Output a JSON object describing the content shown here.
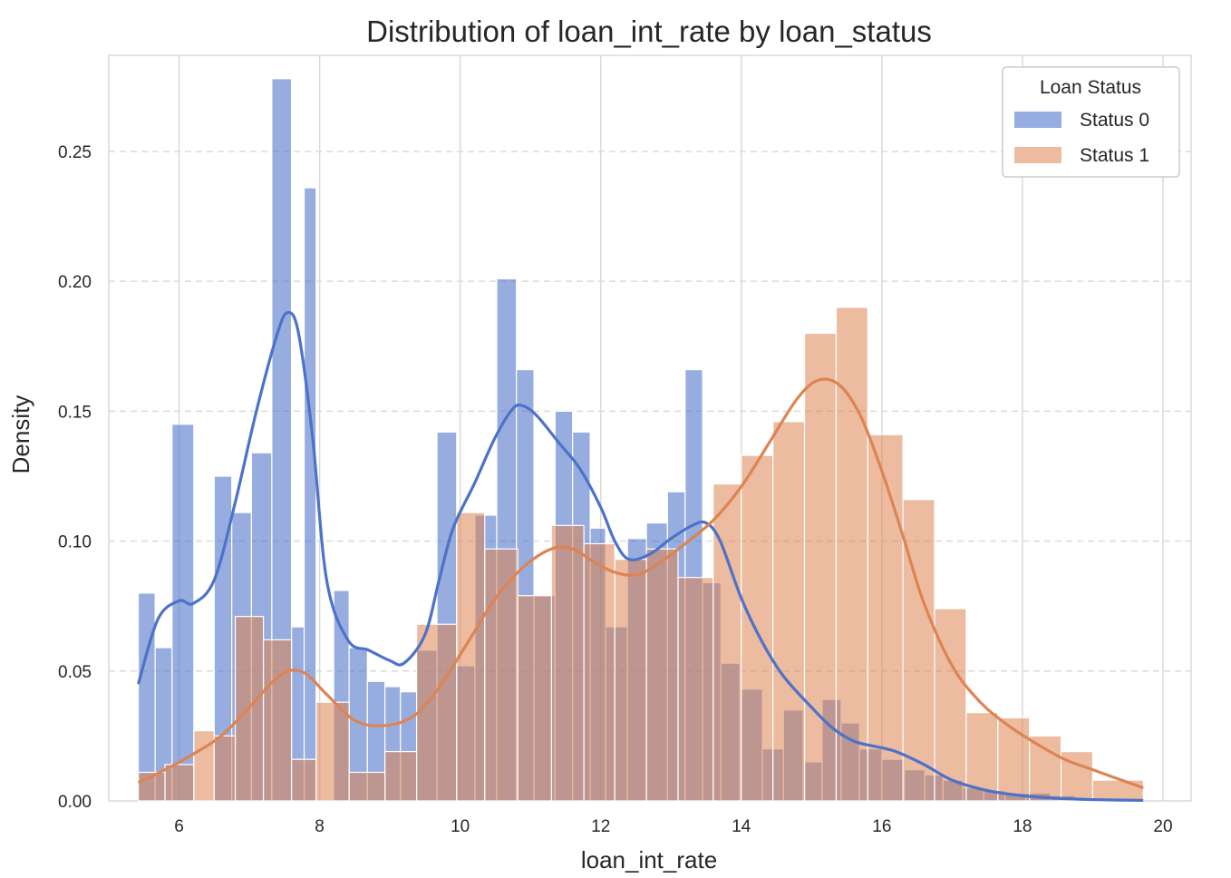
{
  "chart_data": {
    "type": "histogram",
    "title": "Distribution of loan_int_rate by loan_status",
    "xlabel": "loan_int_rate",
    "ylabel": "Density",
    "xlim": [
      5.0,
      20.4
    ],
    "ylim": [
      0,
      0.287
    ],
    "xticks": [
      6,
      8,
      10,
      12,
      14,
      16,
      18,
      20
    ],
    "xtick_labels": [
      "6",
      "8",
      "10",
      "12",
      "14",
      "16",
      "18",
      "20"
    ],
    "yticks": [
      0,
      0.05,
      0.1,
      0.15,
      0.2,
      0.25
    ],
    "ytick_labels": [
      "0.00",
      "0.05",
      "0.10",
      "0.15",
      "0.20",
      "0.25"
    ],
    "grid": true,
    "legend": {
      "title": "Loan Status",
      "placement": "top-right"
    },
    "series": [
      {
        "name": "Status 0",
        "color": "#4c72c9",
        "bin_edges": [
          5.42,
          5.66,
          5.9,
          6.21,
          6.5,
          6.75,
          7.03,
          7.32,
          7.6,
          7.78,
          7.95,
          8.2,
          8.42,
          8.68,
          8.93,
          9.15,
          9.38,
          9.67,
          9.95,
          10.21,
          10.52,
          10.8,
          11.05,
          11.35,
          11.6,
          11.85,
          12.07,
          12.38,
          12.65,
          12.95,
          13.2,
          13.45,
          13.71,
          13.98,
          14.3,
          14.6,
          14.88,
          15.15,
          15.42,
          15.68,
          16.0,
          16.32,
          16.61,
          16.87,
          17.15,
          17.45,
          17.75,
          18.05,
          18.4,
          18.75,
          19.1,
          19.72
        ],
        "densities": [
          0.08,
          0.059,
          0.145,
          0.0,
          0.125,
          0.111,
          0.134,
          0.278,
          0.067,
          0.236,
          0.0,
          0.081,
          0.059,
          0.046,
          0.044,
          0.042,
          0.058,
          0.142,
          0.052,
          0.11,
          0.201,
          0.166,
          0.079,
          0.15,
          0.142,
          0.105,
          0.067,
          0.101,
          0.107,
          0.119,
          0.166,
          0.084,
          0.053,
          0.043,
          0.02,
          0.035,
          0.015,
          0.039,
          0.03,
          0.02,
          0.016,
          0.012,
          0.01,
          0.008,
          0.005,
          0.004,
          0.003,
          0.003,
          0.002,
          0.001,
          0.001
        ],
        "kde_x": [
          5.42,
          5.7,
          6.0,
          6.2,
          6.5,
          6.8,
          7.1,
          7.4,
          7.55,
          7.7,
          7.9,
          8.1,
          8.4,
          8.7,
          9.0,
          9.2,
          9.5,
          9.7,
          9.9,
          10.2,
          10.5,
          10.75,
          10.9,
          11.1,
          11.4,
          11.7,
          12.0,
          12.2,
          12.4,
          12.7,
          13.0,
          13.3,
          13.5,
          13.7,
          14.0,
          14.3,
          14.6,
          15.0,
          15.3,
          15.6,
          15.9,
          16.2,
          16.6,
          17.0,
          17.5,
          18.0,
          18.5,
          19.0,
          19.72
        ],
        "kde_y": [
          0.045,
          0.07,
          0.077,
          0.076,
          0.085,
          0.115,
          0.15,
          0.18,
          0.188,
          0.18,
          0.14,
          0.085,
          0.062,
          0.058,
          0.054,
          0.053,
          0.064,
          0.085,
          0.105,
          0.122,
          0.14,
          0.151,
          0.152,
          0.148,
          0.138,
          0.128,
          0.113,
          0.1,
          0.093,
          0.095,
          0.101,
          0.106,
          0.107,
          0.1,
          0.078,
          0.061,
          0.048,
          0.036,
          0.028,
          0.023,
          0.021,
          0.019,
          0.014,
          0.008,
          0.004,
          0.002,
          0.001,
          0.0005,
          0.0002
        ]
      },
      {
        "name": "Status 1",
        "color": "#dd8452",
        "bin_edges": [
          5.42,
          5.8,
          6.21,
          6.5,
          6.8,
          7.2,
          7.6,
          7.95,
          8.42,
          8.93,
          9.38,
          9.95,
          10.35,
          10.82,
          11.3,
          11.76,
          12.2,
          12.65,
          13.1,
          13.6,
          14.0,
          14.45,
          14.9,
          15.35,
          15.8,
          16.3,
          16.75,
          17.2,
          17.65,
          18.1,
          18.55,
          19.0,
          19.72
        ],
        "densities": [
          0.011,
          0.014,
          0.027,
          0.025,
          0.071,
          0.062,
          0.016,
          0.038,
          0.011,
          0.019,
          0.068,
          0.111,
          0.097,
          0.079,
          0.106,
          0.099,
          0.093,
          0.097,
          0.086,
          0.122,
          0.133,
          0.146,
          0.18,
          0.19,
          0.141,
          0.116,
          0.074,
          0.034,
          0.032,
          0.025,
          0.019,
          0.008
        ],
        "kde_x": [
          5.42,
          5.8,
          6.2,
          6.6,
          7.0,
          7.3,
          7.55,
          7.8,
          8.1,
          8.5,
          8.9,
          9.3,
          9.6,
          9.9,
          10.2,
          10.5,
          10.9,
          11.3,
          11.6,
          11.9,
          12.2,
          12.5,
          12.8,
          13.2,
          13.6,
          14.0,
          14.4,
          14.8,
          15.1,
          15.4,
          15.7,
          16.0,
          16.3,
          16.6,
          17.0,
          17.4,
          17.8,
          18.2,
          18.6,
          19.0,
          19.72
        ],
        "kde_y": [
          0.007,
          0.012,
          0.018,
          0.025,
          0.036,
          0.045,
          0.05,
          0.049,
          0.041,
          0.031,
          0.029,
          0.032,
          0.04,
          0.052,
          0.065,
          0.078,
          0.09,
          0.097,
          0.097,
          0.092,
          0.088,
          0.087,
          0.091,
          0.099,
          0.108,
          0.121,
          0.138,
          0.155,
          0.162,
          0.16,
          0.148,
          0.127,
          0.102,
          0.076,
          0.052,
          0.038,
          0.029,
          0.022,
          0.016,
          0.012,
          0.005
        ]
      }
    ]
  }
}
